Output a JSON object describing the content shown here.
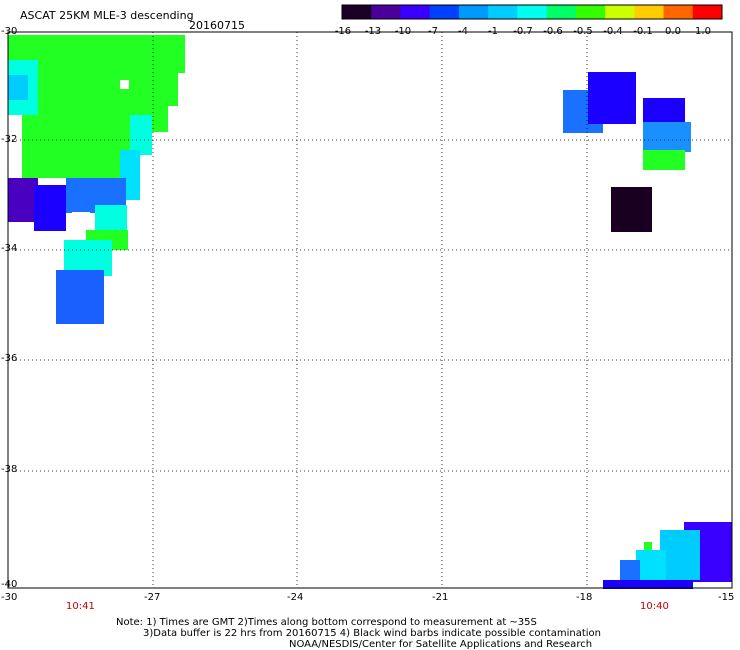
{
  "header": {
    "title": "ASCAT 25KM MLE-3 descending",
    "date": "20160715"
  },
  "colorbar": {
    "labels": [
      "-16",
      "-13",
      "-10",
      "-7",
      "-4",
      "-1",
      "-0.7",
      "-0.6",
      "-0.5",
      "-0.4",
      "-0.1",
      "0.0",
      "1.0"
    ],
    "colors": [
      "#1a0026",
      "#4a0099",
      "#3a00ff",
      "#0040ff",
      "#0099ff",
      "#00ccff",
      "#00ffee",
      "#00ff66",
      "#33ff00",
      "#ccff00",
      "#ffcc00",
      "#ff6600",
      "#ff0000"
    ]
  },
  "axes": {
    "lon_labels": [
      "-30",
      "-27",
      "-24",
      "-21",
      "-18",
      "-15"
    ],
    "lat_labels": [
      "-30",
      "-32",
      "-34",
      "-36",
      "-38",
      "-40"
    ]
  },
  "times": {
    "left": "10:41",
    "right": "10:40"
  },
  "notes": {
    "line1": "Note: 1) Times are GMT 2)Times along bottom correspond to measurement at ~35S",
    "line2": "3)Data buffer is 22 hrs from 20160715 4) Black wind barbs indicate possible contamination",
    "line3": "NOAA/NESDIS/Center for Satellite Applications and Research"
  }
}
